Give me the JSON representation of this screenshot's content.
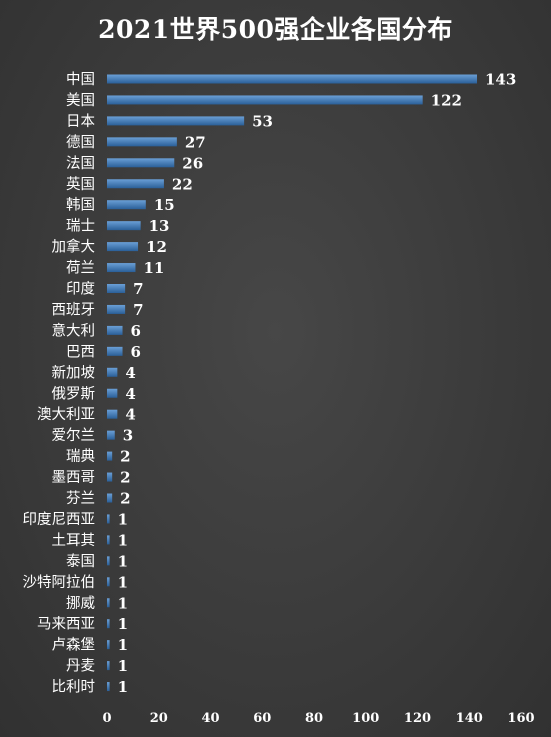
{
  "chart_data": {
    "type": "bar",
    "orientation": "horizontal",
    "title": "2021世界500强企业各国分布",
    "xlabel": "",
    "ylabel": "",
    "xlim": [
      0,
      160
    ],
    "xticks": [
      0,
      20,
      40,
      60,
      80,
      100,
      120,
      140,
      160
    ],
    "grid": false,
    "legend": "none",
    "data_labels": true,
    "categories": [
      "中国",
      "美国",
      "日本",
      "德国",
      "法国",
      "英国",
      "韩国",
      "瑞士",
      "加拿大",
      "荷兰",
      "印度",
      "西班牙",
      "意大利",
      "巴西",
      "新加坡",
      "俄罗斯",
      "澳大利亚",
      "爱尔兰",
      "瑞典",
      "墨西哥",
      "芬兰",
      "印度尼西亚",
      "土耳其",
      "泰国",
      "沙特阿拉伯",
      "挪威",
      "马来西亚",
      "卢森堡",
      "丹麦",
      "比利时"
    ],
    "values": [
      143,
      122,
      53,
      27,
      26,
      22,
      15,
      13,
      12,
      11,
      7,
      7,
      6,
      6,
      4,
      4,
      4,
      3,
      2,
      2,
      2,
      1,
      1,
      1,
      1,
      1,
      1,
      1,
      1,
      1
    ],
    "colors": {
      "bar_top": "#6a9fd6",
      "bar_bottom": "#2a5f98",
      "background": "#3b3b3b",
      "text": "#ffffff"
    }
  }
}
